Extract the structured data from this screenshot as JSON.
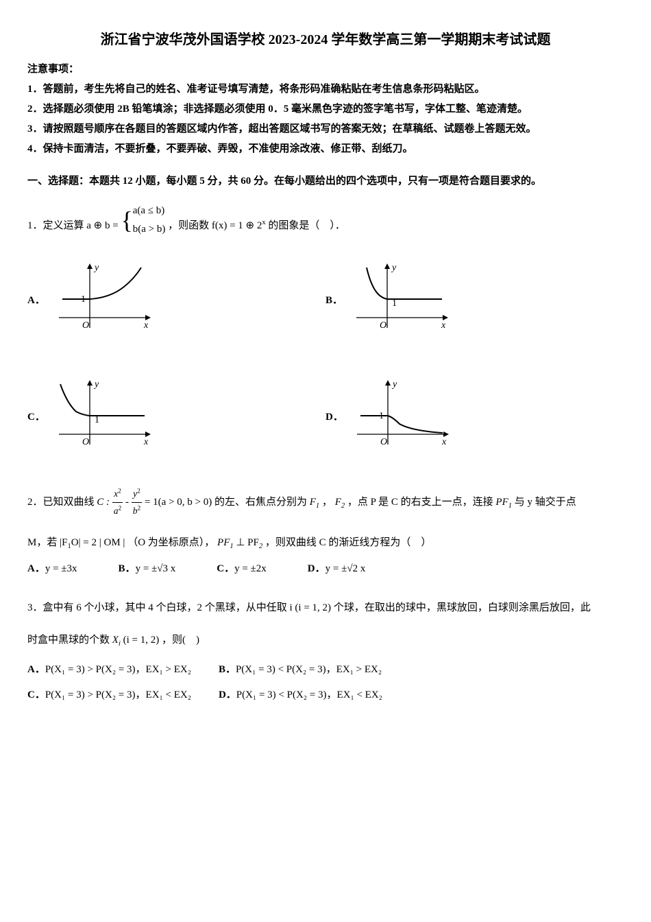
{
  "title": "浙江省宁波华茂外国语学校 2023-2024 学年数学高三第一学期期末考试试题",
  "notice_header": "注意事项：",
  "notices": [
    "1．答题前，考生先将自己的姓名、准考证号填写清楚，将条形码准确粘贴在考生信息条形码粘贴区。",
    "2．选择题必须使用 2B 铅笔填涂；非选择题必须使用 0．5 毫米黑色字迹的签字笔书写，字体工整、笔迹清楚。",
    "3．请按照题号顺序在各题目的答题区域内作答，超出答题区域书写的答案无效；在草稿纸、试题卷上答题无效。",
    "4．保持卡面清洁，不要折叠，不要弄破、弄毁，不准使用涂改液、修正带、刮纸刀。"
  ],
  "section1_title": "一、选择题：本题共 12 小题，每小题 5 分，共 60 分。在每小题给出的四个选项中，只有一项是符合题目要求的。",
  "q1": {
    "prefix": "1．定义运算 ",
    "op_expr_left": "a ⊕ b =",
    "case1": "a(a ≤ b)",
    "case2": "b(a > b)",
    "mid": "，则函数 ",
    "func_expr": "f(x) = 1 ⊕ 2",
    "func_exp": "x",
    "suffix": " 的图象是（　）．",
    "options": {
      "A": "A．",
      "B": "B．",
      "C": "C．",
      "D": "D．"
    },
    "graph": {
      "width": 150,
      "height": 120,
      "axis_color": "#000",
      "stroke_width": 1.3,
      "curve_color": "#000",
      "curve_width": 2,
      "label_x": "x",
      "label_y": "y",
      "label_o": "O",
      "label_1": "1",
      "font_size": 14,
      "A": {
        "type": "piecewise_flat_then_up",
        "flat_y": 1
      },
      "B": {
        "type": "piecewise_down_then_flat",
        "flat_y": 1
      },
      "C": {
        "type": "piecewise_hyper_then_flat",
        "flat_y": 1
      },
      "D": {
        "type": "piecewise_flat_then_hyper",
        "flat_y": 1
      }
    }
  },
  "q2": {
    "text_parts": {
      "p0": "2．已知双曲线 ",
      "hyper_c": "C :",
      "hyper_num1": "x",
      "hyper_num1_sup": "2",
      "hyper_den1": "a",
      "hyper_den1_sup": "2",
      "hyper_minus": " - ",
      "hyper_num2": "y",
      "hyper_num2_sup": "2",
      "hyper_den2": "b",
      "hyper_den2_sup": "2",
      "hyper_tail": " = 1(a > 0, b > 0)",
      "p1": " 的左、右焦点分别为 ",
      "f1": "F",
      "f1_sub": "1",
      "p2": "，",
      "f2": "F",
      "f2_sub": "2",
      "p3": "，点 P 是 C 的右支上一点，连接 ",
      "pf1": "PF",
      "pf1_sub": "1",
      "p4": " 与 y 轴交于点",
      "p5": "M，若 ",
      "abs_expr": "|F",
      "abs_sub": "1",
      "abs_expr2": "O| = 2 | OM |",
      "p6": "（O 为坐标原点），",
      "perp": "PF",
      "perp_sub1": "1",
      "perp_mid": " ⊥ PF",
      "perp_sub2": "2",
      "p7": "，则双曲线 C 的渐近线方程为（　）"
    },
    "options": {
      "A": {
        "label": "A．",
        "expr": "y = ±3x"
      },
      "B": {
        "label": "B．",
        "expr": "y = ±√3 x"
      },
      "C": {
        "label": "C．",
        "expr": "y = ±2x"
      },
      "D": {
        "label": "D．",
        "expr": "y = ±√2 x"
      }
    }
  },
  "q3": {
    "p0": "3．盒中有 6 个小球，其中 4 个白球，2 个黑球，从中任取 ",
    "i_expr": "i (i = 1, 2)",
    "p1": " 个球，在取出的球中，黑球放回，白球则涂黑后放回，此",
    "p2": "时盒中黑球的个数 ",
    "xi_expr": "X",
    "xi_sub": "i",
    "xi_tail": " (i = 1, 2)",
    "p3": "，则(　)",
    "options": {
      "A": {
        "label": "A．",
        "e1": "P(X₁ = 3) > P(X₂ = 3)",
        "sep": "，",
        "e2": "EX₁ > EX₂"
      },
      "B": {
        "label": "B．",
        "e1": "P(X₁ = 3) < P(X₂ = 3)",
        "sep": "，",
        "e2": "EX₁ > EX₂"
      },
      "C": {
        "label": "C．",
        "e1": "P(X₁ = 3) > P(X₂ = 3)",
        "sep": "，",
        "e2": "EX₁ < EX₂"
      },
      "D": {
        "label": "D．",
        "e1": "P(X₁ = 3) < P(X₂ = 3)",
        "sep": "，",
        "e2": "EX₁ < EX₂"
      }
    }
  }
}
